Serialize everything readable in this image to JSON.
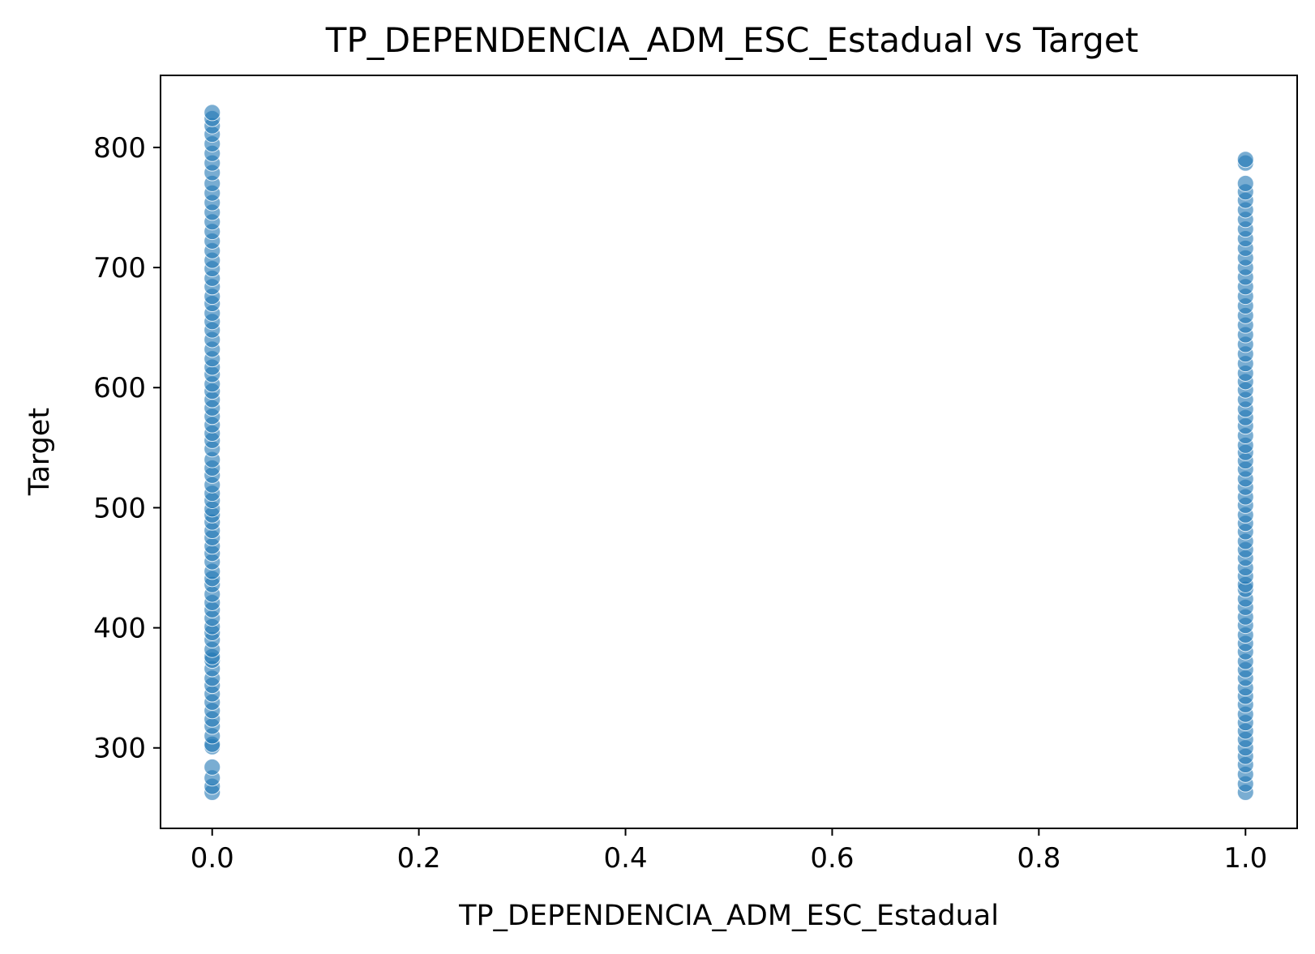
{
  "chart_data": {
    "type": "scatter",
    "title": "TP_DEPENDENCIA_ADM_ESC_Estadual vs Target",
    "xlabel": "TP_DEPENDENCIA_ADM_ESC_Estadual",
    "ylabel": "Target",
    "xlim": [
      -0.05,
      1.05
    ],
    "ylim": [
      233,
      860
    ],
    "x_ticks": [
      0.0,
      0.2,
      0.4,
      0.6,
      0.8,
      1.0
    ],
    "x_tick_labels": [
      "0.0",
      "0.2",
      "0.4",
      "0.6",
      "0.8",
      "1.0"
    ],
    "y_ticks": [
      300,
      400,
      500,
      600,
      700,
      800
    ],
    "y_tick_labels": [
      "300",
      "400",
      "500",
      "600",
      "700",
      "800"
    ],
    "grid": false,
    "marker_color": "#1f77b4",
    "marker_alpha": 0.6,
    "series": [
      {
        "name": "Target",
        "points": [
          {
            "x": 0,
            "y": 263
          },
          {
            "x": 0,
            "y": 268
          },
          {
            "x": 0,
            "y": 275
          },
          {
            "x": 0,
            "y": 284
          },
          {
            "x": 0,
            "y": 301
          },
          {
            "x": 0,
            "y": 303
          },
          {
            "x": 0,
            "y": 310
          },
          {
            "x": 0,
            "y": 318
          },
          {
            "x": 0,
            "y": 324
          },
          {
            "x": 0,
            "y": 331
          },
          {
            "x": 0,
            "y": 338
          },
          {
            "x": 0,
            "y": 345
          },
          {
            "x": 0,
            "y": 352
          },
          {
            "x": 0,
            "y": 358
          },
          {
            "x": 0,
            "y": 366
          },
          {
            "x": 0,
            "y": 373
          },
          {
            "x": 0,
            "y": 376
          },
          {
            "x": 0,
            "y": 382
          },
          {
            "x": 0,
            "y": 390
          },
          {
            "x": 0,
            "y": 396
          },
          {
            "x": 0,
            "y": 401
          },
          {
            "x": 0,
            "y": 408
          },
          {
            "x": 0,
            "y": 415
          },
          {
            "x": 0,
            "y": 421
          },
          {
            "x": 0,
            "y": 428
          },
          {
            "x": 0,
            "y": 436
          },
          {
            "x": 0,
            "y": 441
          },
          {
            "x": 0,
            "y": 447
          },
          {
            "x": 0,
            "y": 455
          },
          {
            "x": 0,
            "y": 462
          },
          {
            "x": 0,
            "y": 468
          },
          {
            "x": 0,
            "y": 475
          },
          {
            "x": 0,
            "y": 481
          },
          {
            "x": 0,
            "y": 488
          },
          {
            "x": 0,
            "y": 494
          },
          {
            "x": 0,
            "y": 499
          },
          {
            "x": 0,
            "y": 506
          },
          {
            "x": 0,
            "y": 512
          },
          {
            "x": 0,
            "y": 519
          },
          {
            "x": 0,
            "y": 527
          },
          {
            "x": 0,
            "y": 533
          },
          {
            "x": 0,
            "y": 540
          },
          {
            "x": 0,
            "y": 549
          },
          {
            "x": 0,
            "y": 556
          },
          {
            "x": 0,
            "y": 562
          },
          {
            "x": 0,
            "y": 569
          },
          {
            "x": 0,
            "y": 576
          },
          {
            "x": 0,
            "y": 583
          },
          {
            "x": 0,
            "y": 590
          },
          {
            "x": 0,
            "y": 597
          },
          {
            "x": 0,
            "y": 603
          },
          {
            "x": 0,
            "y": 611
          },
          {
            "x": 0,
            "y": 617
          },
          {
            "x": 0,
            "y": 624
          },
          {
            "x": 0,
            "y": 632
          },
          {
            "x": 0,
            "y": 640
          },
          {
            "x": 0,
            "y": 648
          },
          {
            "x": 0,
            "y": 655
          },
          {
            "x": 0,
            "y": 662
          },
          {
            "x": 0,
            "y": 670
          },
          {
            "x": 0,
            "y": 676
          },
          {
            "x": 0,
            "y": 684
          },
          {
            "x": 0,
            "y": 691
          },
          {
            "x": 0,
            "y": 699
          },
          {
            "x": 0,
            "y": 706
          },
          {
            "x": 0,
            "y": 714
          },
          {
            "x": 0,
            "y": 722
          },
          {
            "x": 0,
            "y": 730
          },
          {
            "x": 0,
            "y": 738
          },
          {
            "x": 0,
            "y": 746
          },
          {
            "x": 0,
            "y": 754
          },
          {
            "x": 0,
            "y": 762
          },
          {
            "x": 0,
            "y": 770
          },
          {
            "x": 0,
            "y": 779
          },
          {
            "x": 0,
            "y": 787
          },
          {
            "x": 0,
            "y": 795
          },
          {
            "x": 0,
            "y": 803
          },
          {
            "x": 0,
            "y": 811
          },
          {
            "x": 0,
            "y": 818
          },
          {
            "x": 0,
            "y": 824
          },
          {
            "x": 0,
            "y": 829
          },
          {
            "x": 1,
            "y": 263
          },
          {
            "x": 1,
            "y": 270
          },
          {
            "x": 1,
            "y": 278
          },
          {
            "x": 1,
            "y": 286
          },
          {
            "x": 1,
            "y": 293
          },
          {
            "x": 1,
            "y": 300
          },
          {
            "x": 1,
            "y": 307
          },
          {
            "x": 1,
            "y": 314
          },
          {
            "x": 1,
            "y": 321
          },
          {
            "x": 1,
            "y": 328
          },
          {
            "x": 1,
            "y": 336
          },
          {
            "x": 1,
            "y": 343
          },
          {
            "x": 1,
            "y": 350
          },
          {
            "x": 1,
            "y": 358
          },
          {
            "x": 1,
            "y": 365
          },
          {
            "x": 1,
            "y": 372
          },
          {
            "x": 1,
            "y": 380
          },
          {
            "x": 1,
            "y": 387
          },
          {
            "x": 1,
            "y": 394
          },
          {
            "x": 1,
            "y": 402
          },
          {
            "x": 1,
            "y": 409
          },
          {
            "x": 1,
            "y": 417
          },
          {
            "x": 1,
            "y": 424
          },
          {
            "x": 1,
            "y": 432
          },
          {
            "x": 1,
            "y": 436
          },
          {
            "x": 1,
            "y": 443
          },
          {
            "x": 1,
            "y": 450
          },
          {
            "x": 1,
            "y": 458
          },
          {
            "x": 1,
            "y": 465
          },
          {
            "x": 1,
            "y": 472
          },
          {
            "x": 1,
            "y": 480
          },
          {
            "x": 1,
            "y": 487
          },
          {
            "x": 1,
            "y": 494
          },
          {
            "x": 1,
            "y": 502
          },
          {
            "x": 1,
            "y": 509
          },
          {
            "x": 1,
            "y": 517
          },
          {
            "x": 1,
            "y": 524
          },
          {
            "x": 1,
            "y": 532
          },
          {
            "x": 1,
            "y": 539
          },
          {
            "x": 1,
            "y": 546
          },
          {
            "x": 1,
            "y": 552
          },
          {
            "x": 1,
            "y": 560
          },
          {
            "x": 1,
            "y": 568
          },
          {
            "x": 1,
            "y": 575
          },
          {
            "x": 1,
            "y": 582
          },
          {
            "x": 1,
            "y": 590
          },
          {
            "x": 1,
            "y": 598
          },
          {
            "x": 1,
            "y": 605
          },
          {
            "x": 1,
            "y": 612
          },
          {
            "x": 1,
            "y": 620
          },
          {
            "x": 1,
            "y": 628
          },
          {
            "x": 1,
            "y": 636
          },
          {
            "x": 1,
            "y": 644
          },
          {
            "x": 1,
            "y": 652
          },
          {
            "x": 1,
            "y": 660
          },
          {
            "x": 1,
            "y": 668
          },
          {
            "x": 1,
            "y": 676
          },
          {
            "x": 1,
            "y": 684
          },
          {
            "x": 1,
            "y": 692
          },
          {
            "x": 1,
            "y": 700
          },
          {
            "x": 1,
            "y": 708
          },
          {
            "x": 1,
            "y": 716
          },
          {
            "x": 1,
            "y": 724
          },
          {
            "x": 1,
            "y": 732
          },
          {
            "x": 1,
            "y": 740
          },
          {
            "x": 1,
            "y": 748
          },
          {
            "x": 1,
            "y": 756
          },
          {
            "x": 1,
            "y": 763
          },
          {
            "x": 1,
            "y": 770
          },
          {
            "x": 1,
            "y": 787
          },
          {
            "x": 1,
            "y": 790
          }
        ]
      }
    ]
  }
}
